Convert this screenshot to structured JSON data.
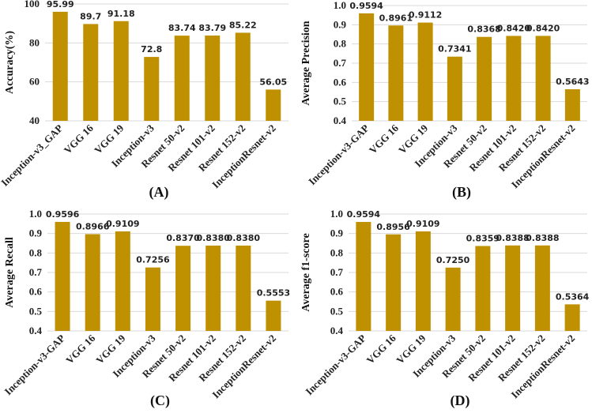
{
  "colors": {
    "bar": "#BF9000",
    "grid": "#D9D9D9"
  },
  "chart_data": [
    {
      "type": "bar",
      "panel_label": "(A)",
      "ylabel": "Accuracy(%)",
      "ylim": [
        40,
        100
      ],
      "yticks": [
        "40",
        "60",
        "80",
        "100"
      ],
      "ytick_values": [
        40,
        60,
        80,
        100
      ],
      "categories": [
        "Inception-v3_GAP",
        "VGG 16",
        "VGG 19",
        "Inception-v3",
        "Resnet 50-v2",
        "Resnet 101-v2",
        "Resnet 152-v2",
        "InceptionResnet-v2"
      ],
      "values": [
        95.99,
        89.7,
        91.18,
        72.8,
        83.74,
        83.79,
        85.22,
        56.05
      ],
      "value_labels": [
        "95.99",
        "89.7",
        "91.18",
        "72.8",
        "83.74",
        "83.79",
        "85.22",
        "56.05"
      ],
      "grid": true
    },
    {
      "type": "bar",
      "panel_label": "(B)",
      "ylabel": "Average Precision",
      "ylim": [
        0.4,
        1.0
      ],
      "yticks": [
        "0.4",
        "0.5",
        "0.6",
        "0.7",
        "0.8",
        "0.9",
        "1.0"
      ],
      "ytick_values": [
        0.4,
        0.5,
        0.6,
        0.7,
        0.8,
        0.9,
        1.0
      ],
      "categories": [
        "Inception-v3-GAP",
        "VGG 16",
        "VGG 19",
        "Inception-v3",
        "Resnet 50-v2",
        "Resnet 101-v2",
        "Resnet 152-v2",
        "InceptionResnet-v2"
      ],
      "values": [
        0.9594,
        0.8961,
        0.9112,
        0.7341,
        0.8368,
        0.842,
        0.842,
        0.5643
      ],
      "value_labels": [
        "0.9594",
        "0.8961",
        "0.9112",
        "0.7341",
        "0.8368",
        "0.8420",
        "0.8420",
        "0.5643"
      ],
      "grid": true
    },
    {
      "type": "bar",
      "panel_label": "(C)",
      "ylabel": "Average Recall",
      "ylim": [
        0.4,
        1.0
      ],
      "yticks": [
        "0.4",
        "0.5",
        "0.6",
        "0.7",
        "0.8",
        "0.9",
        "1.0"
      ],
      "ytick_values": [
        0.4,
        0.5,
        0.6,
        0.7,
        0.8,
        0.9,
        1.0
      ],
      "categories": [
        "Inception-v3-GAP",
        "VGG 16",
        "VGG 19",
        "Inception-v3",
        "Resnet 50-v2",
        "Resnet 101-v2",
        "Resnet 152-v2",
        "InceptionResnet-v2"
      ],
      "values": [
        0.9596,
        0.8966,
        0.9109,
        0.7256,
        0.837,
        0.838,
        0.838,
        0.5553
      ],
      "value_labels": [
        "0.9596",
        "0.8966",
        "0.9109",
        "0.7256",
        "0.8370",
        "0.8380",
        "0.8380",
        "0.5553"
      ],
      "grid": true
    },
    {
      "type": "bar",
      "panel_label": "(D)",
      "ylabel": "Average f1-score",
      "ylim": [
        0.4,
        1.0
      ],
      "yticks": [
        "0.4",
        "0.5",
        "0.6",
        "0.7",
        "0.8",
        "0.9",
        "1.0"
      ],
      "ytick_values": [
        0.4,
        0.5,
        0.6,
        0.7,
        0.8,
        0.9,
        1.0
      ],
      "categories": [
        "Inception-v3-GAP",
        "VGG 16",
        "VGG 19",
        "Inception-v3",
        "Resnet 50-v2",
        "Resnet 101-v2",
        "Resnet 152-v2",
        "InceptionResnet-v2"
      ],
      "values": [
        0.9594,
        0.8956,
        0.9109,
        0.725,
        0.8359,
        0.8388,
        0.8388,
        0.5364
      ],
      "value_labels": [
        "0.9594",
        "0.8956",
        "0.9109",
        "0.7250",
        "0.8359",
        "0.8388",
        "0.8388",
        "0.5364"
      ],
      "grid": true
    }
  ]
}
